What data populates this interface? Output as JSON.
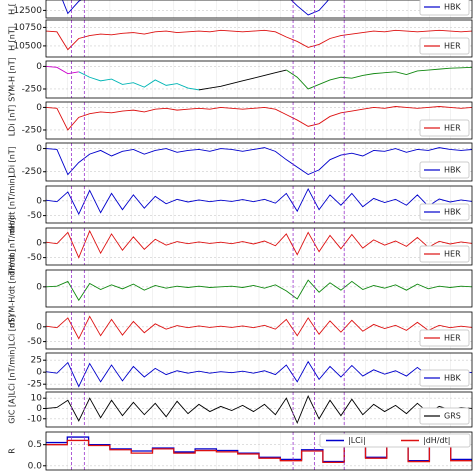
{
  "chart_data": [
    {
      "type": "line",
      "ylabel": "H [",
      "ylim": [
        12450,
        12700
      ],
      "yticks": [
        12500
      ],
      "legend": "right",
      "series": [
        {
          "name": "HBK",
          "color": "#0000cc",
          "values": [
            12680,
            12660,
            12480,
            12560,
            12600,
            12640,
            12620,
            12650,
            12670,
            12640,
            12660,
            12680,
            12670,
            12680,
            12690,
            12680,
            12690,
            12680,
            12670,
            12690,
            12700,
            12680,
            12600,
            12530,
            12470,
            12500,
            12580,
            12620,
            12640,
            12660,
            12680,
            12670,
            12690,
            12680,
            12670,
            12680,
            12690,
            12680,
            12670,
            12680
          ]
        }
      ]
    },
    {
      "type": "line",
      "ylabel": "H [nT]",
      "ylim": [
        10350,
        10850
      ],
      "yticks": [
        10750,
        10500
      ],
      "legend": "right",
      "series": [
        {
          "name": "HER",
          "color": "#dd1111",
          "values": [
            10700,
            10690,
            10450,
            10600,
            10640,
            10660,
            10650,
            10670,
            10680,
            10660,
            10690,
            10700,
            10680,
            10690,
            10700,
            10690,
            10710,
            10700,
            10690,
            10700,
            10710,
            10690,
            10620,
            10560,
            10480,
            10520,
            10600,
            10640,
            10660,
            10680,
            10700,
            10690,
            10710,
            10700,
            10690,
            10700,
            10710,
            10700,
            10690,
            10700
          ]
        }
      ]
    },
    {
      "type": "line",
      "ylabel": "SYM-H [nT]",
      "ylim": [
        -350,
        60
      ],
      "yticks": [
        0,
        -250
      ],
      "legend": null,
      "series": [
        {
          "color": "#cc00cc",
          "values": [
            0,
            -10,
            -80,
            -60,
            null,
            null,
            null,
            null,
            null,
            null,
            null,
            null,
            null,
            null,
            null,
            null,
            null,
            null,
            null,
            null,
            null,
            null,
            null,
            null,
            null,
            null,
            null,
            null,
            null,
            null,
            null,
            null,
            null,
            null,
            null,
            null,
            null,
            null,
            null,
            null
          ]
        },
        {
          "color": "#00b5b5",
          "values": [
            null,
            null,
            null,
            -60,
            -120,
            -160,
            -140,
            -200,
            -180,
            -230,
            -150,
            -210,
            -190,
            -240,
            -260,
            null,
            null,
            null,
            null,
            null,
            null,
            null,
            null,
            null,
            null,
            null,
            null,
            null,
            null,
            null,
            null,
            null,
            null,
            null,
            null,
            null,
            null,
            null,
            null,
            null
          ]
        },
        {
          "color": "#000000",
          "values": [
            null,
            null,
            null,
            null,
            null,
            null,
            null,
            null,
            null,
            null,
            null,
            null,
            null,
            null,
            -260,
            -240,
            -220,
            -190,
            -160,
            -130,
            -100,
            -70,
            -40,
            null,
            null,
            null,
            null,
            null,
            null,
            null,
            null,
            null,
            null,
            null,
            null,
            null,
            null,
            null,
            null,
            null
          ]
        },
        {
          "color": "#118811",
          "values": [
            null,
            null,
            null,
            null,
            null,
            null,
            null,
            null,
            null,
            null,
            null,
            null,
            null,
            null,
            null,
            null,
            null,
            null,
            null,
            null,
            null,
            null,
            -40,
            -120,
            -250,
            -200,
            -150,
            -120,
            -130,
            -100,
            -80,
            -70,
            -60,
            -90,
            -50,
            -40,
            -30,
            -20,
            -15,
            -10
          ]
        }
      ]
    },
    {
      "type": "line",
      "ylabel": "LDi [nT]",
      "ylim": [
        -350,
        60
      ],
      "yticks": [
        0,
        -250
      ],
      "legend": "right",
      "series": [
        {
          "name": "HER",
          "color": "#dd1111",
          "values": [
            0,
            -10,
            -250,
            -110,
            -70,
            -50,
            -60,
            -40,
            -30,
            -50,
            -20,
            -10,
            -30,
            -20,
            -10,
            -20,
            0,
            -10,
            -20,
            -10,
            0,
            -20,
            -80,
            -140,
            -210,
            -180,
            -100,
            -60,
            -40,
            -20,
            0,
            -10,
            10,
            0,
            -10,
            0,
            10,
            0,
            -10,
            0
          ]
        }
      ]
    },
    {
      "type": "line",
      "ylabel": "LDi [nT]",
      "ylim": [
        -350,
        60
      ],
      "yticks": [
        0,
        -250
      ],
      "legend": "right",
      "series": [
        {
          "name": "HBK",
          "color": "#0000cc",
          "values": [
            0,
            -10,
            -280,
            -150,
            -60,
            -20,
            -80,
            -30,
            -10,
            -60,
            -20,
            0,
            -40,
            -20,
            -10,
            -30,
            0,
            -10,
            -30,
            -10,
            10,
            -30,
            -120,
            -200,
            -280,
            -230,
            -120,
            -70,
            -50,
            -80,
            -20,
            -30,
            0,
            -40,
            -10,
            -20,
            10,
            -10,
            -20,
            -10
          ]
        }
      ]
    },
    {
      "type": "line",
      "ylabel": "dH/dt [nT/min]",
      "ylim": [
        -75,
        50
      ],
      "yticks": [
        0,
        -50
      ],
      "legend": "right",
      "series": [
        {
          "name": "HBK",
          "color": "#0000cc",
          "values": [
            2,
            -3,
            30,
            -45,
            35,
            -40,
            25,
            -30,
            20,
            -25,
            15,
            -10,
            5,
            -4,
            3,
            -3,
            2,
            -2,
            4,
            -3,
            5,
            -8,
            25,
            -35,
            40,
            -30,
            20,
            -15,
            25,
            -20,
            8,
            -6,
            5,
            -15,
            20,
            -18,
            6,
            -4,
            3,
            -2
          ]
        }
      ]
    },
    {
      "type": "line",
      "ylabel": "dH/dt [nT/min]",
      "ylim": [
        -75,
        50
      ],
      "yticks": [
        0,
        -50
      ],
      "legend": "right",
      "series": [
        {
          "name": "HER",
          "color": "#dd1111",
          "values": [
            2,
            -3,
            35,
            -50,
            40,
            -35,
            30,
            -25,
            20,
            -22,
            12,
            -8,
            4,
            -3,
            3,
            -2,
            2,
            -3,
            4,
            -4,
            6,
            -10,
            30,
            -40,
            35,
            -30,
            25,
            -20,
            28,
            -18,
            10,
            -8,
            6,
            -12,
            18,
            -15,
            5,
            -4,
            3,
            -2
          ]
        }
      ]
    },
    {
      "type": "line",
      "ylabel": "dSYM-H/dt [nT/min]",
      "ylim": [
        -30,
        25
      ],
      "yticks": [
        0
      ],
      "legend": null,
      "series": [
        {
          "color": "#118811",
          "values": [
            0,
            1,
            8,
            -20,
            5,
            -4,
            3,
            -3,
            4,
            -5,
            2,
            -2,
            1,
            -1,
            1,
            -1,
            0,
            1,
            -1,
            2,
            -2,
            3,
            -6,
            -18,
            10,
            -8,
            6,
            -5,
            8,
            -4,
            2,
            -2,
            3,
            -5,
            4,
            -3,
            1,
            -1,
            1,
            0
          ]
        }
      ]
    },
    {
      "type": "line",
      "ylabel": "LCi [nT]",
      "ylim": [
        -75,
        50
      ],
      "yticks": [
        0,
        -50
      ],
      "legend": "right",
      "series": [
        {
          "name": "HER",
          "color": "#dd1111",
          "values": [
            2,
            -3,
            30,
            -40,
            35,
            -30,
            25,
            -28,
            18,
            -20,
            10,
            -8,
            4,
            -3,
            3,
            -2,
            2,
            -2,
            3,
            -3,
            5,
            -8,
            25,
            -30,
            30,
            -25,
            20,
            -18,
            22,
            -15,
            8,
            -6,
            5,
            -12,
            15,
            -12,
            5,
            -3,
            2,
            -2
          ]
        }
      ]
    },
    {
      "type": "line",
      "ylabel": "LCi [nT/min]",
      "ylim": [
        -35,
        40
      ],
      "yticks": [
        25,
        0,
        -25
      ],
      "legend": "right",
      "series": [
        {
          "name": "HBK",
          "color": "#0000cc",
          "values": [
            1,
            -2,
            20,
            -30,
            18,
            -20,
            15,
            -18,
            12,
            -10,
            8,
            -5,
            3,
            -2,
            2,
            -2,
            1,
            -1,
            2,
            -2,
            3,
            -5,
            15,
            -20,
            22,
            -15,
            12,
            -10,
            14,
            -8,
            5,
            -4,
            3,
            -8,
            10,
            -8,
            3,
            -2,
            2,
            -1
          ]
        }
      ]
    },
    {
      "type": "line",
      "ylabel": "GIC [A]",
      "ylim": [
        -18,
        16
      ],
      "yticks": [
        10,
        0,
        -10
      ],
      "legend": "right",
      "series": [
        {
          "name": "GRS",
          "color": "#000000",
          "values": [
            0,
            1,
            8,
            -12,
            10,
            -9,
            8,
            -7,
            6,
            -6,
            5,
            -8,
            7,
            -5,
            4,
            -3,
            2,
            -2,
            3,
            -3,
            4,
            -6,
            10,
            -14,
            12,
            -10,
            8,
            -7,
            9,
            -6,
            4,
            -3,
            3,
            -5,
            5,
            -4,
            2,
            -1,
            1,
            0
          ]
        }
      ]
    },
    {
      "type": "step",
      "ylabel": "R",
      "ylim": [
        -0.1,
        0.8
      ],
      "yticks": [
        {
          "value": 0.5,
          "label": "0.5"
        },
        {
          "value": 0.0,
          "label": "0.0"
        }
      ],
      "legend": "top",
      "series": [
        {
          "name": "|LCi|",
          "color": "#0000cc",
          "values": [
            0.55,
            0.68,
            0.5,
            0.4,
            0.35,
            0.42,
            0.33,
            0.4,
            0.36,
            0.3,
            0.2,
            0.15,
            0.38,
            0.1,
            0.58,
            0.2,
            0.5,
            0.12,
            0.6,
            0.15
          ]
        },
        {
          "name": "|dH/dt|",
          "color": "#dd1111",
          "values": [
            0.5,
            0.6,
            0.48,
            0.38,
            0.3,
            0.4,
            0.3,
            0.36,
            0.33,
            0.28,
            0.18,
            0.12,
            0.35,
            0.08,
            0.55,
            0.18,
            0.46,
            0.1,
            0.56,
            0.12
          ]
        }
      ]
    }
  ]
}
